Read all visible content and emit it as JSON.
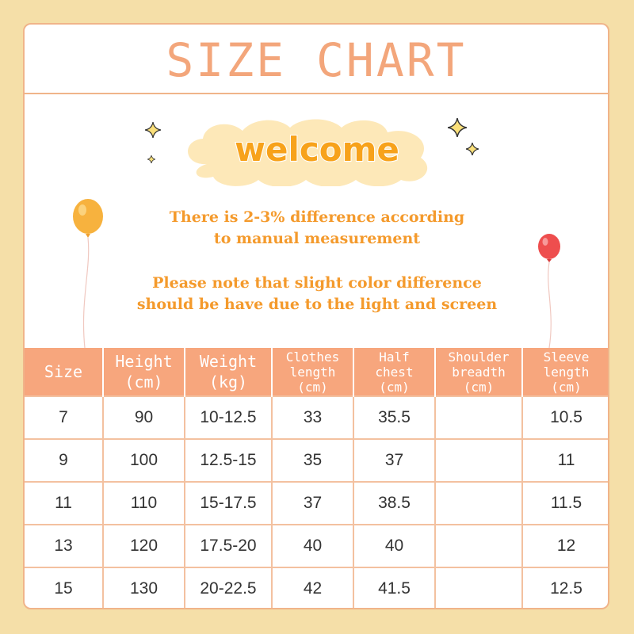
{
  "title": "SIZE CHART",
  "welcome": "welcome",
  "notes": {
    "line1": "There is 2-3% difference according",
    "line2": "to manual measurement",
    "line3": "Please note that slight color difference",
    "line4": "should be have due to the light and screen"
  },
  "table": {
    "headers": [
      {
        "line1": "Size",
        "line2": "",
        "line3": ""
      },
      {
        "line1": "Height",
        "line2": "(cm)",
        "line3": ""
      },
      {
        "line1": "Weight",
        "line2": "(kg)",
        "line3": ""
      },
      {
        "line1": "Clothes",
        "line2": "length",
        "line3": "(cm)"
      },
      {
        "line1": "Half",
        "line2": "chest",
        "line3": "(cm)"
      },
      {
        "line1": "Shoulder",
        "line2": "breadth",
        "line3": "(cm)"
      },
      {
        "line1": "Sleeve",
        "line2": "length",
        "line3": "(cm)"
      }
    ],
    "rows": [
      [
        "7",
        "90",
        "10-12.5",
        "33",
        "35.5",
        "",
        "10.5"
      ],
      [
        "9",
        "100",
        "12.5-15",
        "35",
        "37",
        "",
        "11"
      ],
      [
        "11",
        "110",
        "15-17.5",
        "37",
        "38.5",
        "",
        "11.5"
      ],
      [
        "13",
        "120",
        "17.5-20",
        "40",
        "40",
        "",
        "12"
      ],
      [
        "15",
        "130",
        "20-22.5",
        "42",
        "41.5",
        "",
        "12.5"
      ]
    ]
  },
  "colors": {
    "background": "#f5dfa8",
    "accent": "#f7a67d",
    "title": "#f3a67b",
    "welcome": "#f7a21b",
    "note": "#f49a2c"
  },
  "icons": [
    "sparkle-icon",
    "balloon-orange-icon",
    "balloon-red-icon",
    "cloud-shape"
  ]
}
